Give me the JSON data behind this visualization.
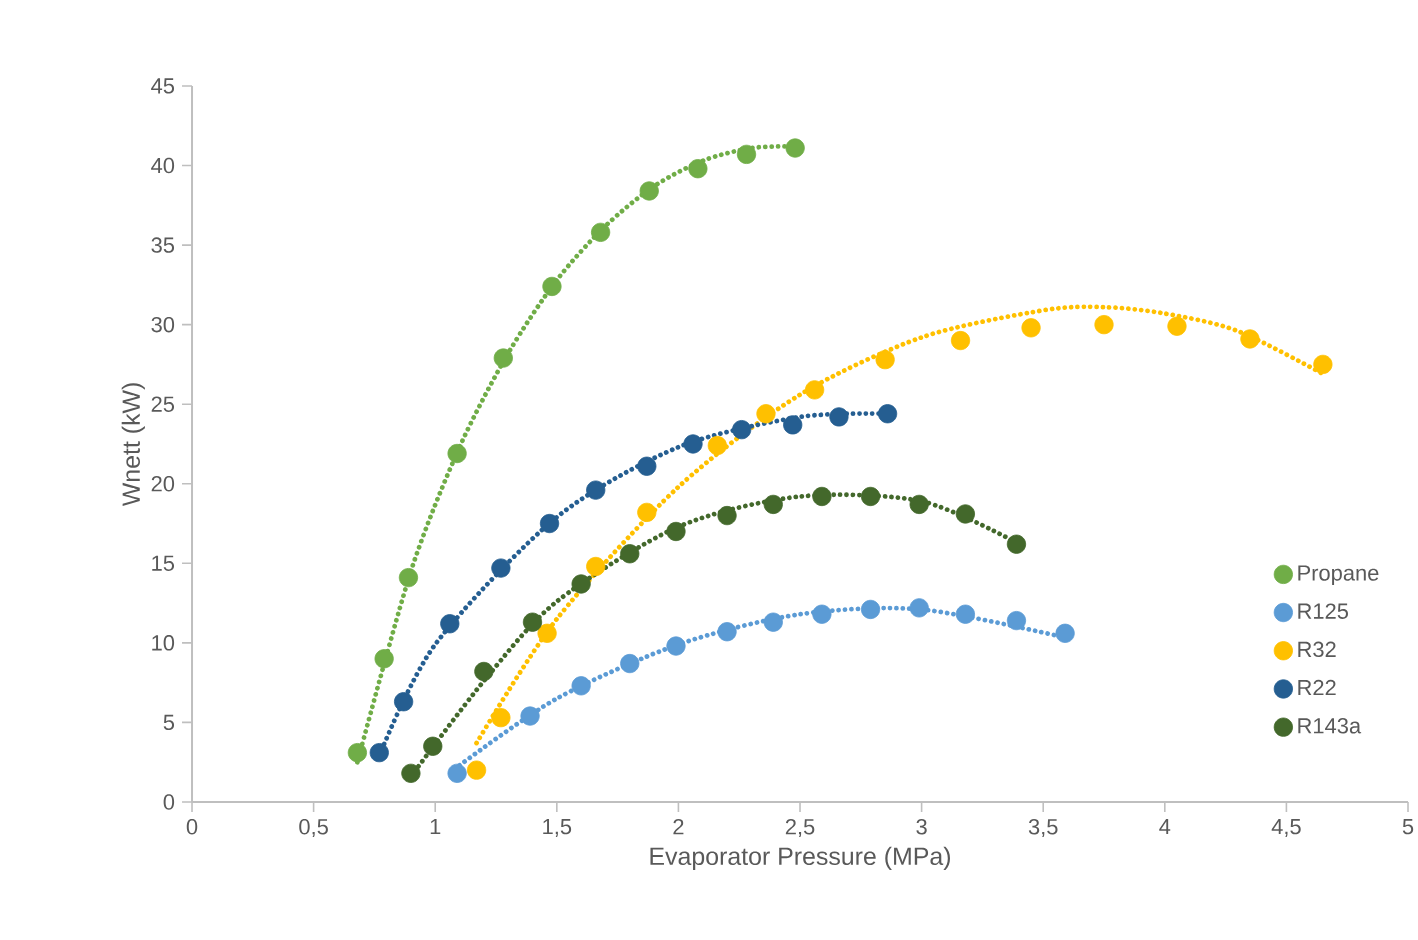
{
  "chart_data": {
    "type": "scatter",
    "xlabel": "Evaporator Pressure (MPa)",
    "ylabel": "Wnett (kW)",
    "xlim": [
      0,
      5
    ],
    "ylim": [
      0,
      45
    ],
    "xticks": [
      0,
      {
        "value": 0.5,
        "label": "0,5"
      },
      1,
      {
        "value": 1.5,
        "label": "1,5"
      },
      2,
      {
        "value": 2.5,
        "label": "2,5"
      },
      3,
      {
        "value": 3.5,
        "label": "3,5"
      },
      4,
      {
        "value": 4.5,
        "label": "4,5"
      },
      5
    ],
    "yticks": [
      0,
      5,
      10,
      15,
      20,
      25,
      30,
      35,
      40,
      45
    ],
    "grid": false,
    "legend": "right",
    "series": [
      {
        "name": "Propane",
        "marker": "circle",
        "color": "#70ad47",
        "x": [
          0.68,
          0.79,
          0.89,
          1.09,
          1.28,
          1.48,
          1.68,
          1.88,
          2.08,
          2.28,
          2.48
        ],
        "values": [
          3.1,
          9.0,
          14.1,
          21.9,
          27.9,
          32.4,
          35.8,
          38.4,
          39.8,
          40.7,
          41.1
        ]
      },
      {
        "name": "R125",
        "marker": "circle",
        "color": "#5b9bd5",
        "x": [
          1.09,
          1.39,
          1.6,
          1.8,
          1.99,
          2.2,
          2.39,
          2.59,
          2.79,
          2.99,
          3.18,
          3.39,
          3.59
        ],
        "values": [
          1.8,
          5.4,
          7.3,
          8.7,
          9.8,
          10.7,
          11.3,
          11.8,
          12.1,
          12.2,
          11.8,
          11.4,
          10.6
        ]
      },
      {
        "name": "R32",
        "marker": "circle",
        "color": "#ffc000",
        "x": [
          1.17,
          1.27,
          1.46,
          1.66,
          1.87,
          2.16,
          2.36,
          2.56,
          2.85,
          3.16,
          3.45,
          3.75,
          4.05,
          4.35,
          4.65
        ],
        "values": [
          2.0,
          5.3,
          10.6,
          14.8,
          18.2,
          22.4,
          24.4,
          25.9,
          27.8,
          29.0,
          29.8,
          30.0,
          29.9,
          29.1,
          27.5
        ]
      },
      {
        "name": "R22",
        "marker": "circle",
        "color": "#255e91",
        "x": [
          0.77,
          0.87,
          1.06,
          1.27,
          1.47,
          1.66,
          1.87,
          2.06,
          2.26,
          2.47,
          2.66,
          2.86
        ],
        "values": [
          3.1,
          6.3,
          11.2,
          14.7,
          17.5,
          19.6,
          21.1,
          22.5,
          23.4,
          23.7,
          24.2,
          24.4
        ]
      },
      {
        "name": "R143a",
        "marker": "circle",
        "color": "#43682b",
        "x": [
          0.9,
          0.99,
          1.2,
          1.4,
          1.6,
          1.8,
          1.99,
          2.2,
          2.39,
          2.59,
          2.79,
          2.99,
          3.18,
          3.39
        ],
        "values": [
          1.8,
          3.5,
          8.2,
          11.3,
          13.7,
          15.6,
          17.0,
          18.0,
          18.7,
          19.2,
          19.2,
          18.7,
          18.1,
          16.2
        ]
      },
      {
        "type": "line",
        "line_style": "dotted",
        "marker": "none",
        "color": "#70ad47",
        "x": [
          0.68,
          0.9,
          1.1,
          1.3,
          1.5,
          1.7,
          1.9,
          2.1,
          2.3,
          2.48
        ],
        "values": [
          2.5,
          14.5,
          22.3,
          28.2,
          32.8,
          36.2,
          38.7,
          40.3,
          41.1,
          41.2
        ]
      },
      {
        "type": "line",
        "line_style": "dotted",
        "marker": "none",
        "color": "#5b9bd5",
        "x": [
          1.1,
          1.5,
          2,
          2.5,
          3,
          3.6
        ],
        "values": [
          2.3,
          6.5,
          9.9,
          11.8,
          12.1,
          10.3
        ]
      },
      {
        "type": "line",
        "line_style": "dotted",
        "marker": "none",
        "color": "#ffc000",
        "x": [
          1.17,
          1.5,
          2,
          2.5,
          3,
          3.5,
          3.75,
          4,
          4.3,
          4.65
        ],
        "values": [
          3.7,
          11.5,
          19.8,
          25.6,
          29.2,
          30.9,
          31.1,
          30.7,
          29.6,
          26.9
        ]
      },
      {
        "type": "line",
        "line_style": "dotted",
        "marker": "none",
        "color": "#255e91",
        "x": [
          0.77,
          1,
          1.5,
          2,
          2.5,
          2.86
        ],
        "values": [
          2.9,
          9.9,
          17.9,
          22.3,
          24.2,
          24.4
        ]
      },
      {
        "type": "line",
        "line_style": "dotted",
        "marker": "none",
        "color": "#43682b",
        "x": [
          0.9,
          1.2,
          1.5,
          2,
          2.5,
          3,
          3.39
        ],
        "values": [
          1.6,
          7.6,
          12.6,
          17.3,
          19.2,
          18.9,
          16.3
        ]
      }
    ]
  }
}
